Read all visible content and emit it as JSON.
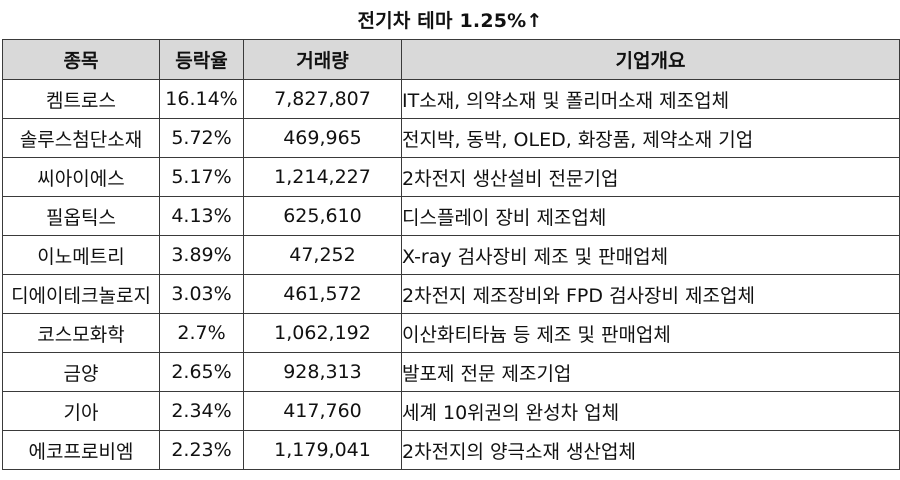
{
  "title": "전기차 테마 1.25%↑",
  "table": {
    "headers": [
      "종목",
      "등락율",
      "거래량",
      "기업개요"
    ],
    "rows": [
      {
        "name": "켐트로스",
        "rate": "16.14%",
        "volume": "7,827,807",
        "desc": "IT소재, 의약소재 및 폴리머소재 제조업체"
      },
      {
        "name": "솔루스첨단소재",
        "rate": "5.72%",
        "volume": "469,965",
        "desc": "전지박, 동박, OLED, 화장품, 제약소재 기업"
      },
      {
        "name": "씨아이에스",
        "rate": "5.17%",
        "volume": "1,214,227",
        "desc": "2차전지 생산설비 전문기업"
      },
      {
        "name": "필옵틱스",
        "rate": "4.13%",
        "volume": "625,610",
        "desc": "디스플레이 장비 제조업체"
      },
      {
        "name": "이노메트리",
        "rate": "3.89%",
        "volume": "47,252",
        "desc": "X-ray 검사장비 제조 및 판매업체"
      },
      {
        "name": "디에이테크놀로지",
        "rate": "3.03%",
        "volume": "461,572",
        "desc": "2차전지 제조장비와 FPD 검사장비 제조업체"
      },
      {
        "name": "코스모화학",
        "rate": "2.7%",
        "volume": "1,062,192",
        "desc": "이산화티타늄 등 제조 및 판매업체"
      },
      {
        "name": "금양",
        "rate": "2.65%",
        "volume": "928,313",
        "desc": "발포제 전문 제조기업"
      },
      {
        "name": "기아",
        "rate": "2.34%",
        "volume": "417,760",
        "desc": "세계 10위권의 완성차 업체"
      },
      {
        "name": "에코프로비엠",
        "rate": "2.23%",
        "volume": "1,179,041",
        "desc": "2차전지의 양극소재 생산업체"
      }
    ]
  }
}
